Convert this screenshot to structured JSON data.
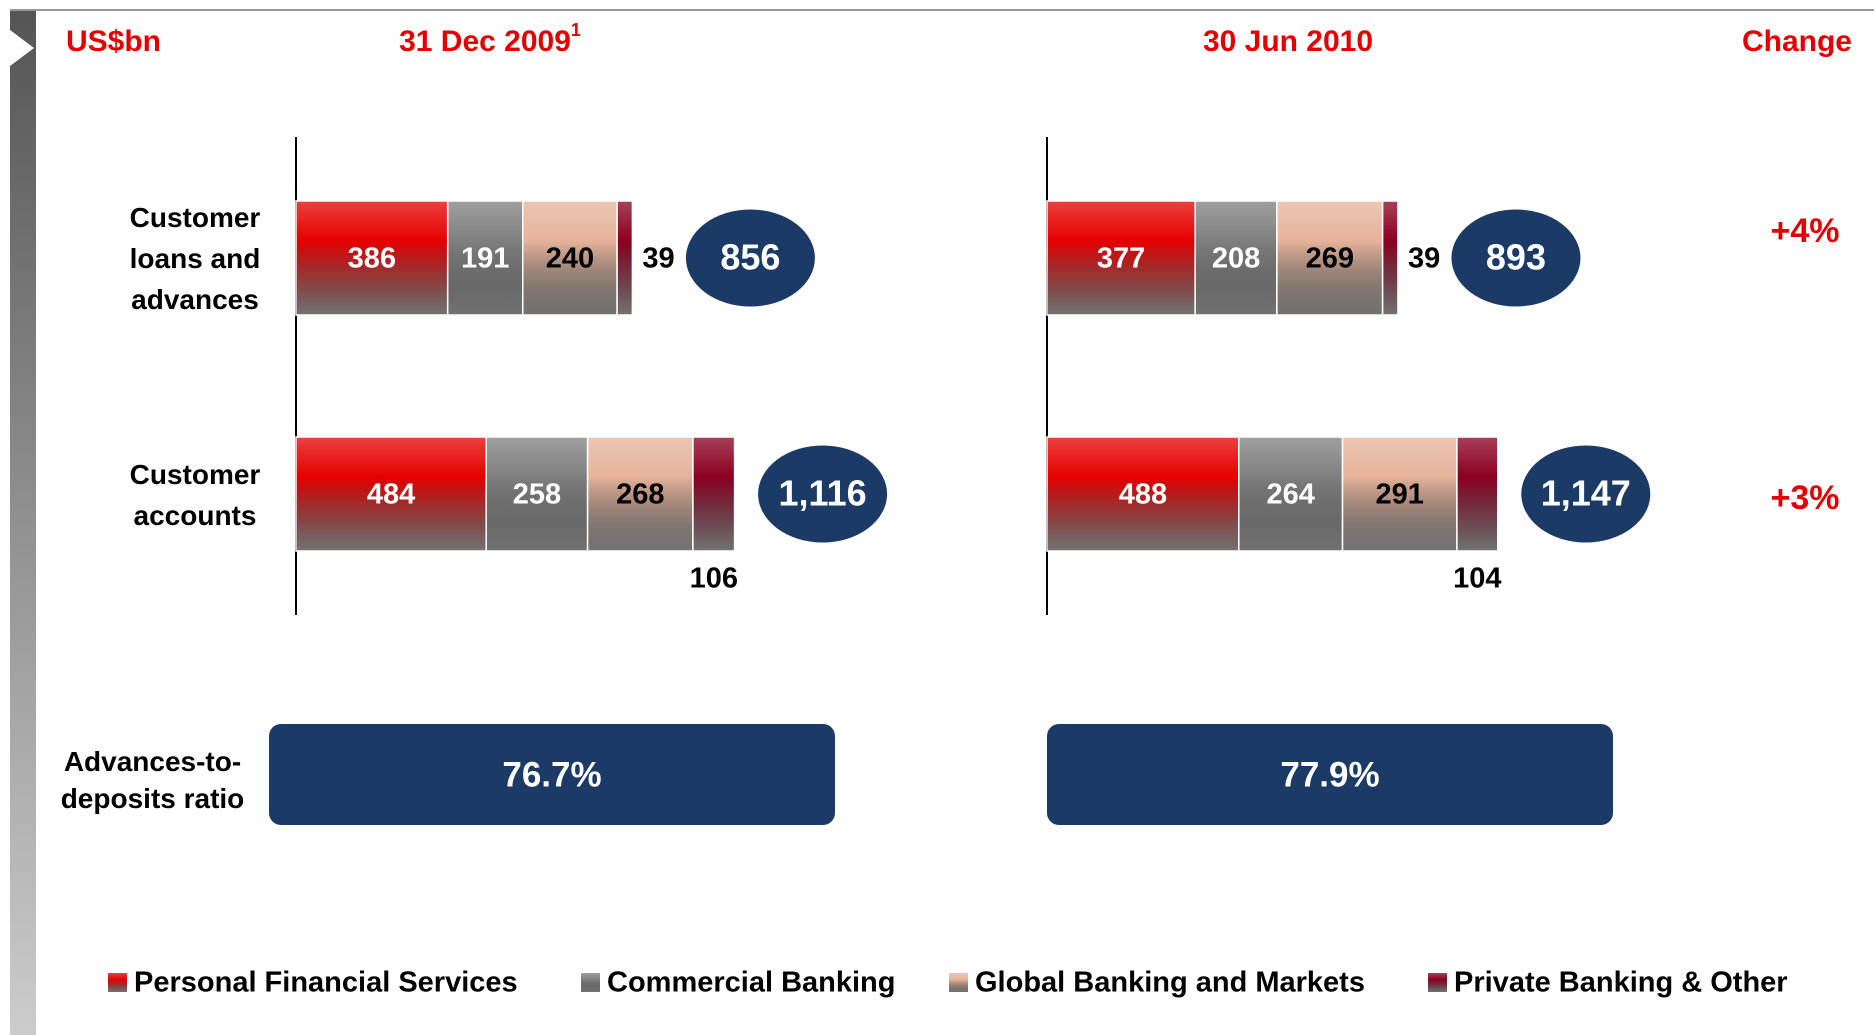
{
  "chart_data": {
    "type": "bar",
    "orientation": "horizontal",
    "stacked": true,
    "unit": "US$bn",
    "change_title": "Change",
    "categories": [
      "Customer loans and advances",
      "Customer accounts"
    ],
    "series": [
      {
        "name": "Personal Financial Services",
        "color": "#e60000"
      },
      {
        "name": "Commercial Banking",
        "color": "#7f7f7f"
      },
      {
        "name": "Global Banking and Markets",
        "color": "#e6b39a"
      },
      {
        "name": "Private Banking & Other",
        "color": "#8c0020"
      }
    ],
    "panels": [
      {
        "title": "31 Dec 2009",
        "footnote": "1",
        "values": [
          [
            386,
            191,
            240,
            39
          ],
          [
            484,
            258,
            268,
            106
          ]
        ],
        "totals": [
          856,
          1116
        ],
        "total_labels": [
          "856",
          "1,116"
        ],
        "ratio": 76.7,
        "ratio_label": "76.7%"
      },
      {
        "title": "30 Jun 2010",
        "values": [
          [
            377,
            208,
            269,
            39
          ],
          [
            488,
            264,
            291,
            104
          ]
        ],
        "totals": [
          893,
          1147
        ],
        "total_labels": [
          "893",
          "1,147"
        ],
        "ratio": 77.9,
        "ratio_label": "77.9%"
      }
    ],
    "ratio_title": "Advances-to-deposits ratio",
    "changes": [
      4,
      3
    ],
    "change_labels": [
      "+4%",
      "+3%"
    ]
  }
}
